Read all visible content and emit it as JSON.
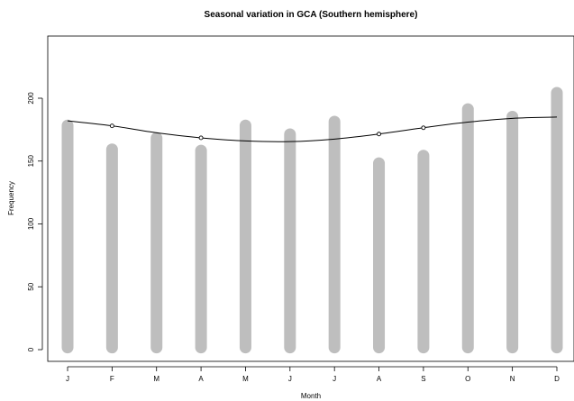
{
  "chart_data": {
    "type": "bar",
    "title": "Seasonal variation in GCA (Southern hemisphere)",
    "xlabel": "Month",
    "ylabel": "Frequency",
    "categories": [
      "J",
      "F",
      "M",
      "A",
      "M",
      "J",
      "J",
      "A",
      "S",
      "O",
      "N",
      "D"
    ],
    "series": [
      {
        "type": "bar",
        "values": [
          183,
          164,
          173,
          163,
          183,
          176,
          186,
          153,
          159,
          196,
          190,
          209
        ],
        "color": "#bebebe"
      },
      {
        "type": "line",
        "values": [
          182,
          178,
          172.5,
          168.5,
          166,
          165.5,
          167.5,
          171.5,
          176.5,
          181,
          184,
          185
        ],
        "marker_indices": [
          1,
          3,
          7,
          8
        ],
        "color": "#000000"
      }
    ],
    "ylim": [
      -5,
      230
    ],
    "yticks": [
      0,
      50,
      100,
      150,
      200
    ],
    "grid": false,
    "legend": "none"
  }
}
